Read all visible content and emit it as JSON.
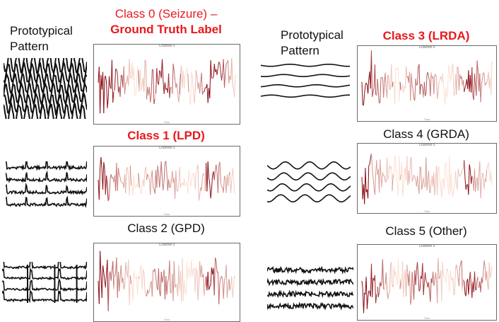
{
  "headings": {
    "left": "Prototypical\nPattern",
    "right": "Prototypical\nPattern"
  },
  "classes": [
    {
      "id": 0,
      "line1": "Class 0 (Seizure) –",
      "line2": "Ground Truth Label",
      "highlight": true
    },
    {
      "id": 1,
      "line1": "Class 1 (LPD)",
      "highlight": true
    },
    {
      "id": 2,
      "line1": "Class 2 (GPD)",
      "highlight": false
    },
    {
      "id": 3,
      "line1": "Class 3 (LRDA)",
      "highlight": true
    },
    {
      "id": 4,
      "line1": "Class 4 (GRDA)",
      "highlight": false
    },
    {
      "id": 5,
      "line1": "Class 5 (Other)",
      "highlight": false
    }
  ],
  "panels": [
    {
      "channel": "Channel 0",
      "xlabel": "Time",
      "intensity": 0.95
    },
    {
      "channel": "Channel 0",
      "xlabel": "Time",
      "intensity": 0.55
    },
    {
      "channel": "Channel 0",
      "xlabel": "Time",
      "intensity": 0.6
    },
    {
      "channel": "Channel 0",
      "xlabel": "Time",
      "intensity": 0.7
    },
    {
      "channel": "Channel 0",
      "xlabel": "Time",
      "intensity": 0.35
    },
    {
      "channel": "Channel 0",
      "xlabel": "Time",
      "intensity": 0.85
    }
  ],
  "colors": {
    "highlight_text": "#e8191c",
    "signal_dark": "#8b0b14",
    "signal_light": "#fde3d6"
  }
}
